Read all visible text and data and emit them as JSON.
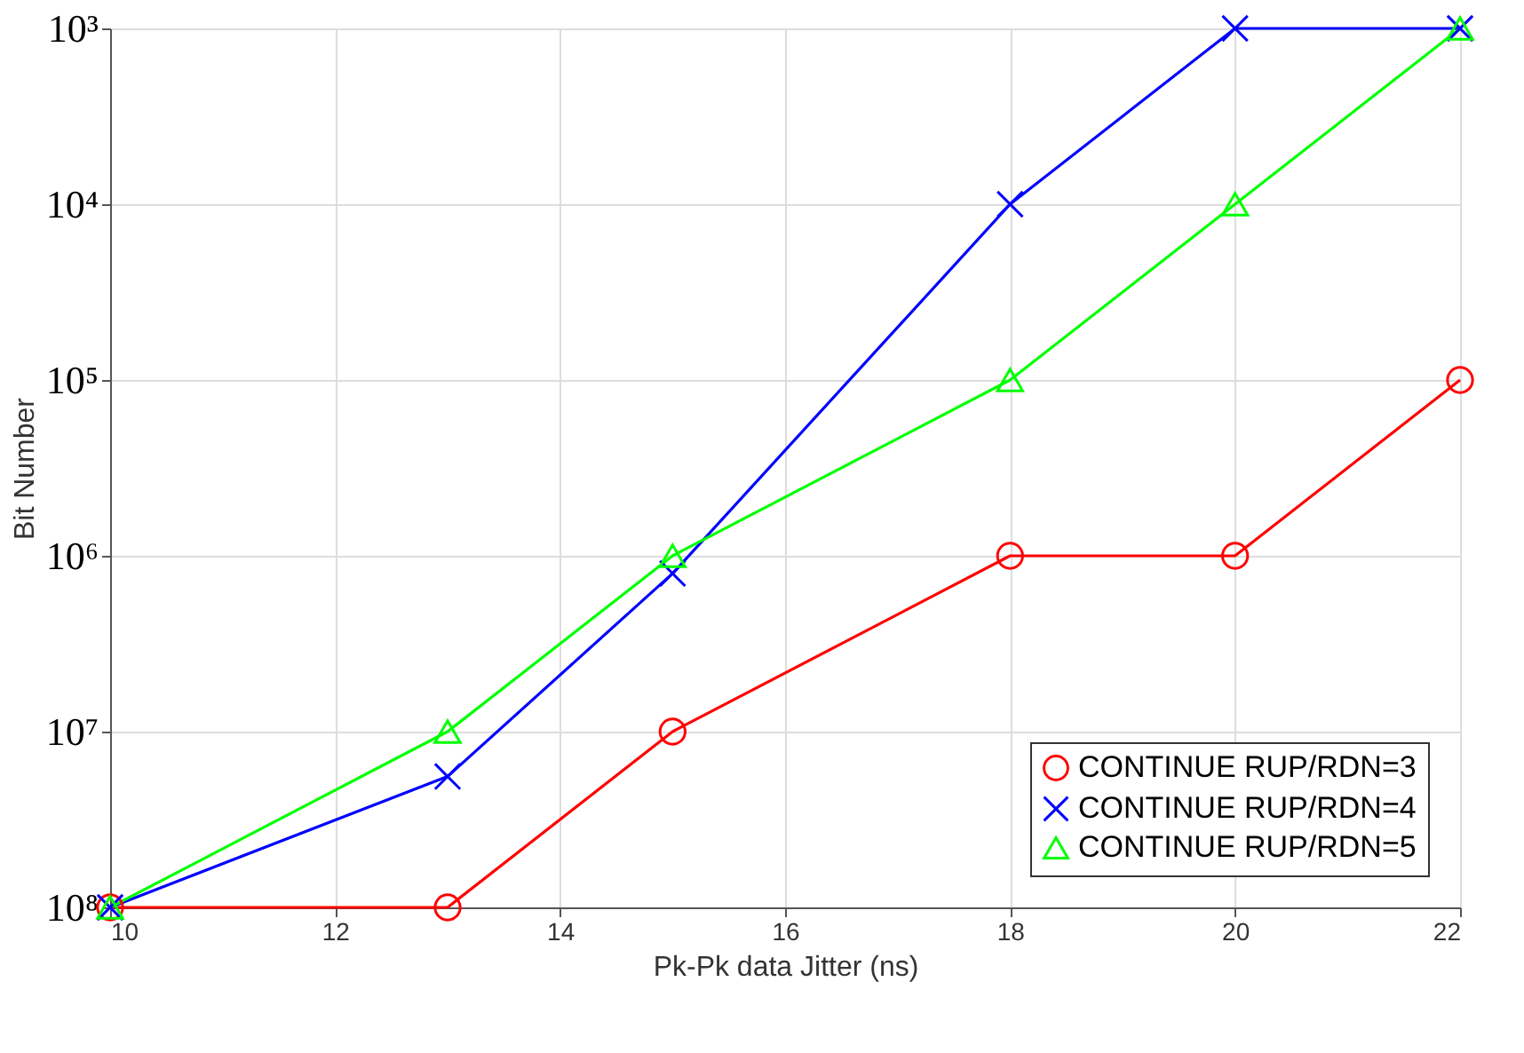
{
  "chart_data": {
    "type": "line",
    "xlabel": "Pk-Pk data Jitter (ns)",
    "ylabel": "Bit Number",
    "x": [
      10,
      13,
      15,
      18,
      20,
      22
    ],
    "series": [
      {
        "name": "CONTINUE RUP/RDN=3",
        "color": "#ff0000",
        "marker": "circle",
        "values": [
          100000000,
          100000000,
          10000000,
          1000000,
          1000000,
          100000
        ]
      },
      {
        "name": "CONTINUE RUP/RDN=4",
        "color": "#0000ff",
        "marker": "cross",
        "values": [
          100000000,
          18000000,
          1260000,
          10000,
          1000,
          1000
        ]
      },
      {
        "name": "CONTINUE RUP/RDN=5",
        "color": "#00ff00",
        "marker": "triangle",
        "values": [
          100000000,
          10000000,
          1000000,
          100000,
          10000,
          1000
        ]
      }
    ],
    "log": "y",
    "xlim": [
      10,
      22
    ],
    "xticks": [
      10,
      12,
      14,
      16,
      18,
      20,
      22
    ],
    "ylim": [
      100000000,
      1000
    ],
    "yticks": [
      {
        "value": 1000,
        "label": "10³"
      },
      {
        "value": 10000,
        "label": "10⁴"
      },
      {
        "value": 100000,
        "label": "10⁵"
      },
      {
        "value": 1000000,
        "label": "10⁶"
      },
      {
        "value": 10000000,
        "label": "10⁷"
      },
      {
        "value": 100000000,
        "label": "10⁸"
      }
    ],
    "grid": true,
    "legend": "bottom right",
    "line_style": "solid"
  }
}
